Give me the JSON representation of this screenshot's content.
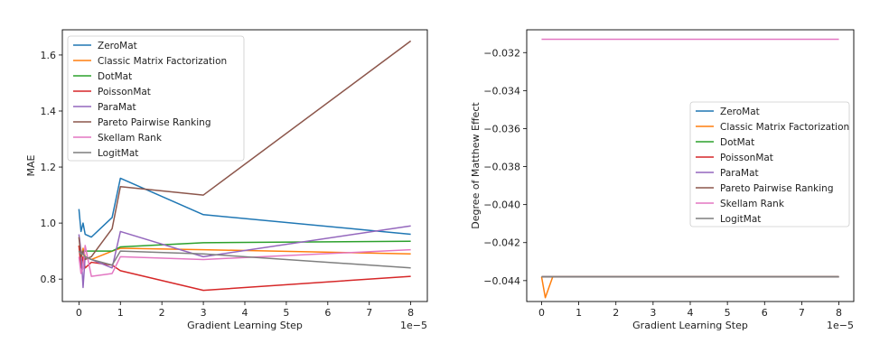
{
  "chart_data": [
    {
      "type": "line",
      "xlabel": "Gradient Learning Step",
      "ylabel": "MAE",
      "x_offset_label": "1e−5",
      "xlim": [
        -0.4,
        8.4
      ],
      "ylim": [
        0.72,
        1.69
      ],
      "xticks": [
        "0",
        "1",
        "2",
        "3",
        "4",
        "5",
        "6",
        "7",
        "8"
      ],
      "yticks": [
        "0.8",
        "1.0",
        "1.2",
        "1.4",
        "1.6"
      ],
      "ytick_values": [
        0.8,
        1.0,
        1.2,
        1.4,
        1.6
      ],
      "legend_position": "upper-left",
      "series": [
        {
          "name": "ZeroMat",
          "color": "#1f77b4",
          "points": [
            [
              0.0,
              1.05
            ],
            [
              0.05,
              0.97
            ],
            [
              0.1,
              1.0
            ],
            [
              0.15,
              0.96
            ],
            [
              0.3,
              0.95
            ],
            [
              0.8,
              1.02
            ],
            [
              1.0,
              1.16
            ],
            [
              3.0,
              1.03
            ],
            [
              8.0,
              0.96
            ]
          ]
        },
        {
          "name": "Classic Matrix Factorization",
          "color": "#ff7f0e",
          "points": [
            [
              0.0,
              0.92
            ],
            [
              0.05,
              0.87
            ],
            [
              0.1,
              0.91
            ],
            [
              0.15,
              0.88
            ],
            [
              0.3,
              0.87
            ],
            [
              0.8,
              0.9
            ],
            [
              1.0,
              0.91
            ],
            [
              3.0,
              0.905
            ],
            [
              8.0,
              0.89
            ]
          ]
        },
        {
          "name": "DotMat",
          "color": "#2ca02c",
          "points": [
            [
              0.0,
              0.9
            ],
            [
              0.05,
              0.89
            ],
            [
              0.1,
              0.9
            ],
            [
              0.15,
              0.9
            ],
            [
              0.3,
              0.9
            ],
            [
              0.8,
              0.9
            ],
            [
              1.0,
              0.915
            ],
            [
              3.0,
              0.93
            ],
            [
              8.0,
              0.935
            ]
          ]
        },
        {
          "name": "PoissonMat",
          "color": "#d62728",
          "points": [
            [
              0.0,
              0.92
            ],
            [
              0.05,
              0.84
            ],
            [
              0.1,
              0.88
            ],
            [
              0.15,
              0.84
            ],
            [
              0.3,
              0.86
            ],
            [
              0.8,
              0.85
            ],
            [
              1.0,
              0.83
            ],
            [
              3.0,
              0.76
            ],
            [
              8.0,
              0.81
            ]
          ]
        },
        {
          "name": "ParaMat",
          "color": "#9467bd",
          "points": [
            [
              0.0,
              0.96
            ],
            [
              0.05,
              0.9
            ],
            [
              0.1,
              0.77
            ],
            [
              0.15,
              0.88
            ],
            [
              0.3,
              0.87
            ],
            [
              0.8,
              0.84
            ],
            [
              1.0,
              0.97
            ],
            [
              3.0,
              0.88
            ],
            [
              8.0,
              0.99
            ]
          ]
        },
        {
          "name": "Pareto Pairwise Ranking",
          "color": "#8c564b",
          "points": [
            [
              0.0,
              0.95
            ],
            [
              0.05,
              0.88
            ],
            [
              0.1,
              0.9
            ],
            [
              0.15,
              0.87
            ],
            [
              0.3,
              0.88
            ],
            [
              0.8,
              0.98
            ],
            [
              1.0,
              1.13
            ],
            [
              3.0,
              1.1
            ],
            [
              8.0,
              1.65
            ]
          ]
        },
        {
          "name": "Skellam Rank",
          "color": "#e377c2",
          "points": [
            [
              0.0,
              0.88
            ],
            [
              0.05,
              0.82
            ],
            [
              0.1,
              0.84
            ],
            [
              0.15,
              0.92
            ],
            [
              0.3,
              0.81
            ],
            [
              0.8,
              0.82
            ],
            [
              1.0,
              0.88
            ],
            [
              3.0,
              0.87
            ],
            [
              8.0,
              0.905
            ]
          ]
        },
        {
          "name": "LogitMat",
          "color": "#7f7f7f",
          "points": [
            [
              0.0,
              0.9
            ],
            [
              0.05,
              0.89
            ],
            [
              0.1,
              0.89
            ],
            [
              0.15,
              0.88
            ],
            [
              0.3,
              0.87
            ],
            [
              0.8,
              0.85
            ],
            [
              1.0,
              0.9
            ],
            [
              3.0,
              0.89
            ],
            [
              8.0,
              0.84
            ]
          ]
        }
      ]
    },
    {
      "type": "line",
      "xlabel": "Gradient Learning Step",
      "ylabel": "Degree of Matthew Effect",
      "x_offset_label": "1e−5",
      "xlim": [
        -0.4,
        8.4
      ],
      "ylim": [
        -0.0451,
        -0.0308
      ],
      "xticks": [
        "0",
        "1",
        "2",
        "3",
        "4",
        "5",
        "6",
        "7",
        "8"
      ],
      "yticks": [
        "−0.044",
        "−0.042",
        "−0.040",
        "−0.038",
        "−0.036",
        "−0.034",
        "−0.032"
      ],
      "ytick_values": [
        -0.044,
        -0.042,
        -0.04,
        -0.038,
        -0.036,
        -0.034,
        -0.032
      ],
      "legend_position": "center-right",
      "series": [
        {
          "name": "ZeroMat",
          "color": "#1f77b4",
          "points": [
            [
              0.0,
              -0.0438
            ],
            [
              8.0,
              -0.0438
            ]
          ]
        },
        {
          "name": "Classic Matrix Factorization",
          "color": "#ff7f0e",
          "points": [
            [
              0.0,
              -0.0438
            ],
            [
              0.1,
              -0.0449
            ],
            [
              0.3,
              -0.0438
            ],
            [
              8.0,
              -0.0438
            ]
          ]
        },
        {
          "name": "DotMat",
          "color": "#2ca02c",
          "points": [
            [
              0.0,
              -0.0438
            ],
            [
              8.0,
              -0.0438
            ]
          ]
        },
        {
          "name": "PoissonMat",
          "color": "#d62728",
          "points": [
            [
              0.0,
              -0.0438
            ],
            [
              8.0,
              -0.0438
            ]
          ]
        },
        {
          "name": "ParaMat",
          "color": "#9467bd",
          "points": [
            [
              0.0,
              -0.0438
            ],
            [
              8.0,
              -0.0438
            ]
          ]
        },
        {
          "name": "Pareto Pairwise Ranking",
          "color": "#8c564b",
          "points": [
            [
              0.0,
              -0.0438
            ],
            [
              8.0,
              -0.0438
            ]
          ]
        },
        {
          "name": "Skellam Rank",
          "color": "#e377c2",
          "points": [
            [
              0.0,
              -0.0313
            ],
            [
              8.0,
              -0.0313
            ]
          ]
        },
        {
          "name": "LogitMat",
          "color": "#7f7f7f",
          "points": [
            [
              0.0,
              -0.0438
            ],
            [
              8.0,
              -0.0438
            ]
          ]
        }
      ]
    }
  ]
}
